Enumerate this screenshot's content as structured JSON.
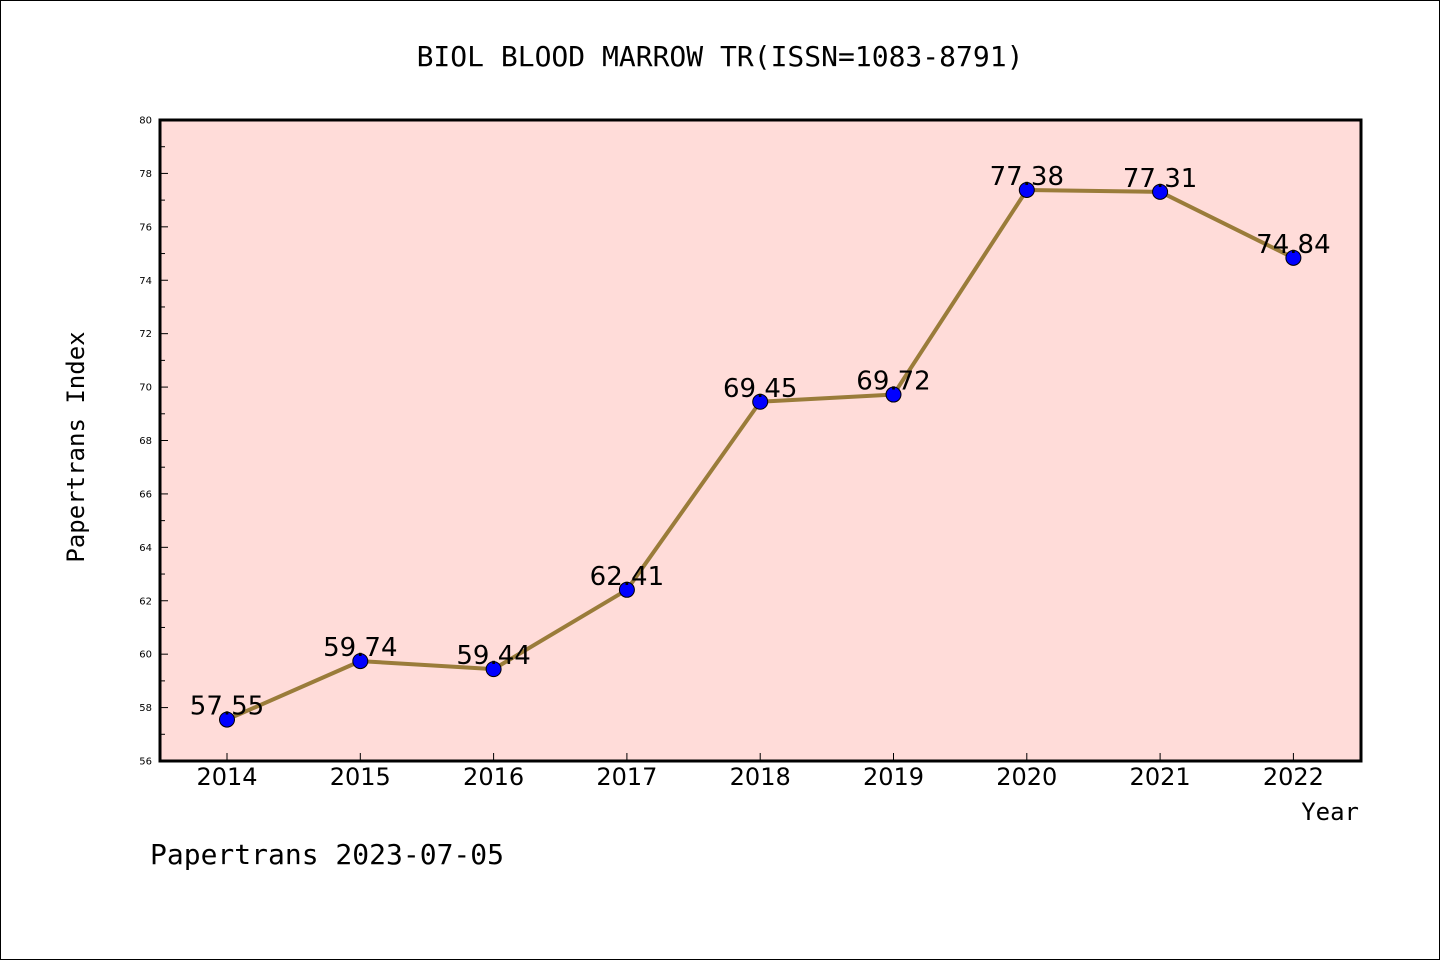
{
  "chart_data": {
    "type": "line",
    "title": "BIOL BLOOD MARROW TR(ISSN=1083-8791)",
    "xlabel": "Year",
    "ylabel": "Papertrans Index",
    "categories": [
      "2014",
      "2015",
      "2016",
      "2017",
      "2018",
      "2019",
      "2020",
      "2021",
      "2022"
    ],
    "series": [
      {
        "values": [
          57.55,
          59.74,
          59.44,
          62.41,
          69.45,
          69.72,
          77.38,
          77.31,
          74.84
        ],
        "labels": [
          "57.55",
          "59.74",
          "59.44",
          "62.41",
          "69.45",
          "69.72",
          "77.38",
          "77.31",
          "74.84"
        ]
      }
    ],
    "ylim": [
      56,
      80
    ],
    "yticks": [
      56,
      58,
      60,
      62,
      64,
      66,
      68,
      70,
      72,
      74,
      76,
      78,
      80
    ],
    "yticklabels": [
      "56",
      "58",
      "60",
      "62",
      "64",
      "66",
      "68",
      "70",
      "72",
      "74",
      "76",
      "78",
      "80"
    ],
    "grid": false,
    "plot_background": "#ffdcd9",
    "line_color": "#9a7c3a",
    "marker_color": "#0000ff",
    "footer": "Papertrans 2023-07-05"
  }
}
